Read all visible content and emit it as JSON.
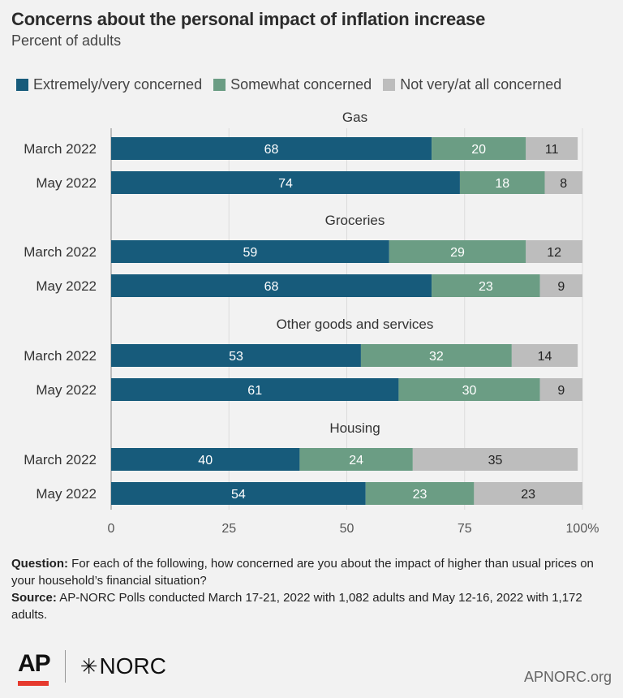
{
  "title": "Concerns about the personal impact of inflation increase",
  "subtitle": "Percent of adults",
  "legend": [
    {
      "label": "Extremely/very concerned",
      "color": "#175b7b"
    },
    {
      "label": "Somewhat concerned",
      "color": "#6b9d84"
    },
    {
      "label": "Not very/at all concerned",
      "color": "#bdbdbd"
    }
  ],
  "notes": {
    "question_label": "Question:",
    "question_text": " For each of the following, how concerned are you about the impact of higher than usual prices on your household’s financial situation?",
    "source_label": "Source:",
    "source_text": " AP-NORC Polls conducted March 17-21, 2022 with 1,082 adults and May 12-16, 2022 with 1,172 adults."
  },
  "logos": {
    "ap": "AP",
    "norc": "NORC",
    "norc_icon": "star-burst-icon"
  },
  "site": "APNORC.org",
  "chart_data": {
    "type": "bar",
    "orientation": "horizontal",
    "stacked": true,
    "xlim": [
      0,
      100
    ],
    "x_ticks": [
      "0",
      "25",
      "50",
      "75",
      "100%"
    ],
    "x_tick_values": [
      0,
      25,
      50,
      75,
      100
    ],
    "grid": true,
    "legend_position": "top",
    "series": [
      {
        "name": "Extremely/very concerned",
        "color": "#175b7b",
        "label_color": "#ffffff"
      },
      {
        "name": "Somewhat concerned",
        "color": "#6b9d84",
        "label_color": "#ffffff"
      },
      {
        "name": "Not very/at all concerned",
        "color": "#bdbdbd",
        "label_color": "#222222"
      }
    ],
    "groups": [
      {
        "name": "Gas",
        "rows": [
          {
            "label": "March 2022",
            "values": [
              68,
              20,
              11
            ]
          },
          {
            "label": "May 2022",
            "values": [
              74,
              18,
              8
            ]
          }
        ]
      },
      {
        "name": "Groceries",
        "rows": [
          {
            "label": "March 2022",
            "values": [
              59,
              29,
              12
            ]
          },
          {
            "label": "May 2022",
            "values": [
              68,
              23,
              9
            ]
          }
        ]
      },
      {
        "name": "Other goods and services",
        "rows": [
          {
            "label": "March 2022",
            "values": [
              53,
              32,
              14
            ]
          },
          {
            "label": "May 2022",
            "values": [
              61,
              30,
              9
            ]
          }
        ]
      },
      {
        "name": "Housing",
        "rows": [
          {
            "label": "March 2022",
            "values": [
              40,
              24,
              35
            ]
          },
          {
            "label": "May 2022",
            "values": [
              54,
              23,
              23
            ]
          }
        ]
      }
    ]
  }
}
